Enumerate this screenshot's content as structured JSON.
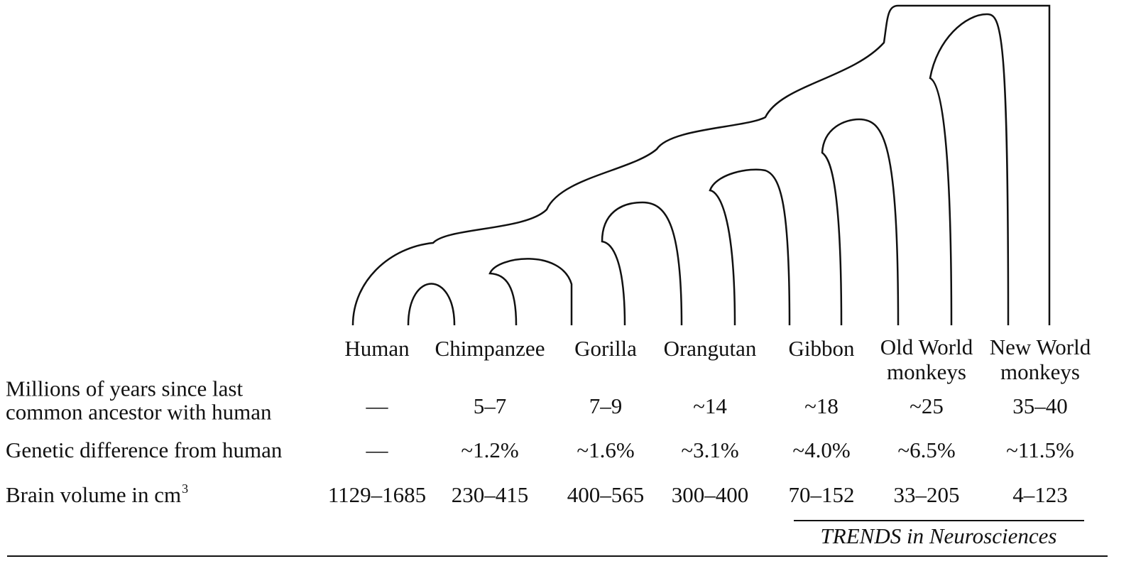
{
  "species": [
    [
      "Human"
    ],
    [
      "Chimpanzee"
    ],
    [
      "Gorilla"
    ],
    [
      "Orangutan"
    ],
    [
      "Gibbon"
    ],
    [
      "Old World",
      "monkeys"
    ],
    [
      "New World",
      "monkeys"
    ]
  ],
  "rows": [
    {
      "label": [
        "Millions of years since last",
        "common ancestor with human"
      ],
      "values": [
        "—",
        "5–7",
        "7–9",
        "~14",
        "~18",
        "~25",
        "35–40"
      ]
    },
    {
      "label": [
        "Genetic difference from human"
      ],
      "values": [
        "—",
        "~1.2%",
        "~1.6%",
        "~3.1%",
        "~4.0%",
        "~6.5%",
        "~11.5%"
      ]
    },
    {
      "label": [
        "Brain volume in cm"
      ],
      "label_superscript": "3",
      "values": [
        "1129–1685",
        "230–415",
        "400–565",
        "300–400",
        "70–152",
        "33–205",
        "4–123"
      ]
    }
  ],
  "source": "TRENDS in Neurosciences"
}
